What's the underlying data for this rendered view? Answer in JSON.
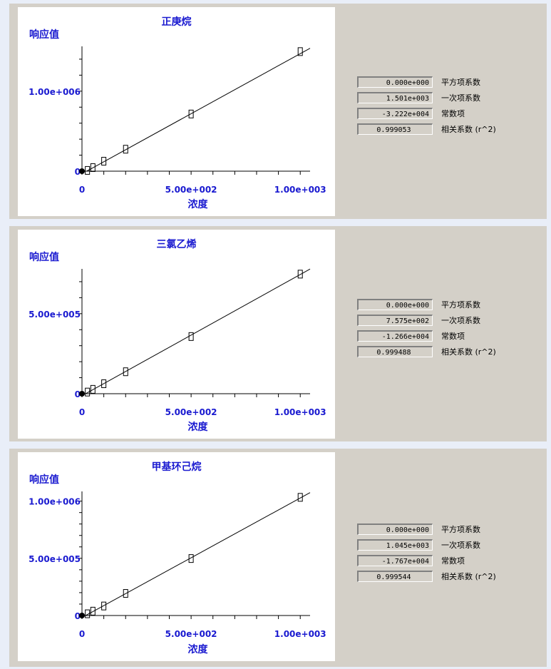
{
  "chart_data": [
    {
      "type": "scatter",
      "title": "正庚烷",
      "ylabel": "响应值",
      "xlabel": "浓度",
      "xlim": [
        0,
        1045
      ],
      "ylim": [
        0,
        1560000
      ],
      "xticks": [
        0,
        500,
        1000
      ],
      "xtick_labels": [
        "0",
        "5.00e+002",
        "1.00e+003"
      ],
      "yticks": [
        0,
        1000000
      ],
      "ytick_labels": [
        "0",
        "1.00e+006"
      ],
      "yminor_step": 200000,
      "x": [
        0,
        25,
        50,
        100,
        200,
        500,
        1000
      ],
      "y": [
        0,
        5000,
        40000,
        120000,
        270000,
        710000,
        1490000
      ],
      "fit": {
        "a": 0,
        "b": 1501,
        "c": -32220
      }
    },
    {
      "type": "scatter",
      "title": "三氯乙烯",
      "ylabel": "响应值",
      "xlabel": "浓度",
      "xlim": [
        0,
        1045
      ],
      "ylim": [
        0,
        780000
      ],
      "xticks": [
        0,
        500,
        1000
      ],
      "xtick_labels": [
        "0",
        "5.00e+002",
        "1.00e+003"
      ],
      "yticks": [
        0,
        500000
      ],
      "ytick_labels": [
        "0",
        "5.00e+005"
      ],
      "yminor_step": 100000,
      "x": [
        0,
        25,
        50,
        100,
        200,
        500,
        1000
      ],
      "y": [
        0,
        8000,
        25000,
        60000,
        135000,
        355000,
        745000
      ],
      "fit": {
        "a": 0,
        "b": 757.5,
        "c": -12660
      }
    },
    {
      "type": "scatter",
      "title": "甲基环己烷",
      "ylabel": "响应值",
      "xlabel": "浓度",
      "xlim": [
        0,
        1045
      ],
      "ylim": [
        0,
        1085000
      ],
      "xticks": [
        0,
        500,
        1000
      ],
      "xtick_labels": [
        "0",
        "5.00e+002",
        "1.00e+003"
      ],
      "yticks": [
        0,
        500000,
        1000000
      ],
      "ytick_labels": [
        "0",
        "5.00e+005",
        "1.00e+006"
      ],
      "yminor_step": 100000,
      "x": [
        0,
        25,
        50,
        100,
        200,
        500,
        1000
      ],
      "y": [
        0,
        12000,
        35000,
        80000,
        190000,
        495000,
        1030000
      ],
      "fit": {
        "a": 0,
        "b": 1045,
        "c": -17670
      }
    }
  ],
  "coefficients": [
    {
      "quad": "0.000e+000",
      "linear": "1.501e+003",
      "const": "-3.222e+004",
      "r2": "0.999053"
    },
    {
      "quad": "0.000e+000",
      "linear": "7.575e+002",
      "const": "-1.266e+004",
      "r2": "0.999488"
    },
    {
      "quad": "0.000e+000",
      "linear": "1.045e+003",
      "const": "-1.767e+004",
      "r2": "0.999544"
    }
  ],
  "labels": {
    "quad": "平方项系数",
    "linear": "一次项系数",
    "const": "常数项",
    "r2": "相关系数 (r^2)"
  },
  "colors": {
    "axis_text": "#1a1ad0",
    "panel": "#d4d0c8",
    "background": "#e9eef8"
  }
}
